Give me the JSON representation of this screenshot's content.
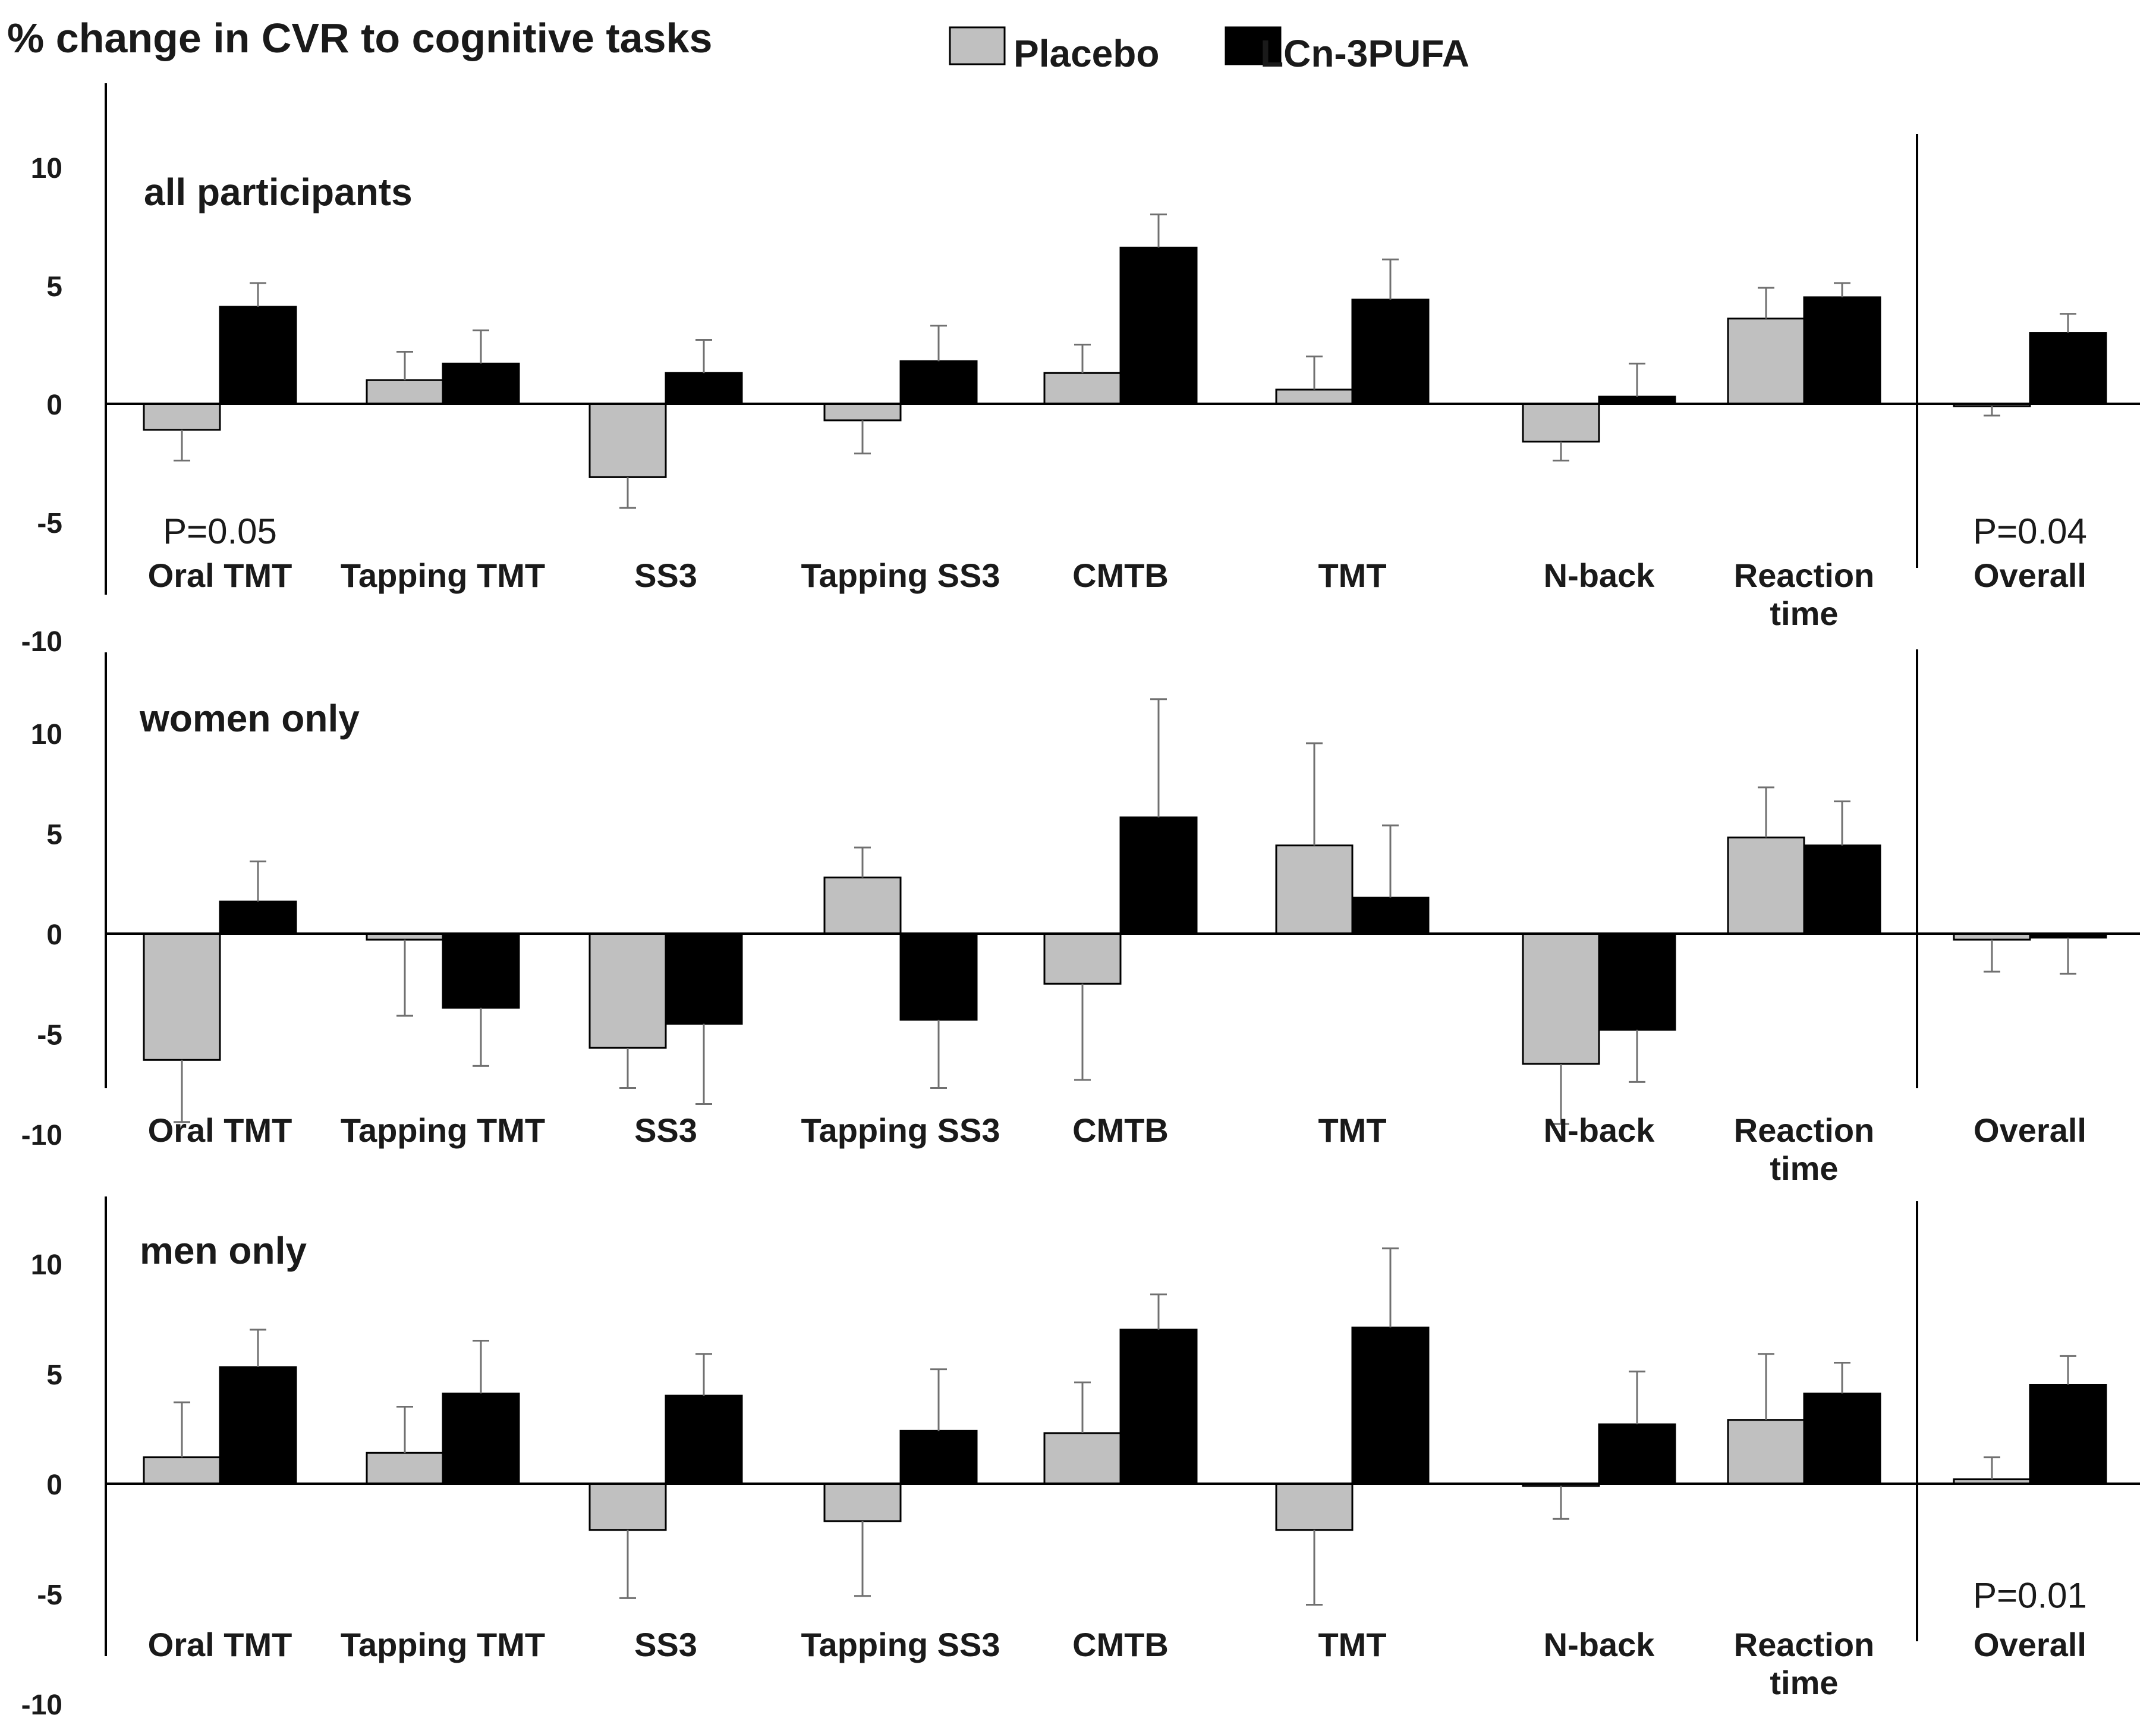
{
  "chart_data": {
    "type": "bar",
    "title": "% change in CVR to cognitive tasks",
    "legend": {
      "position": "top",
      "entries": [
        {
          "name": "Placebo",
          "color": "#c0c0c0"
        },
        {
          "name": "LCn-3PUFA",
          "color": "#000000"
        }
      ]
    },
    "categories": [
      "Oral TMT",
      "Tapping TMT",
      "SS3",
      "Tapping SS3",
      "CMTB",
      "TMT",
      "N-back",
      "Reaction time",
      "Overall"
    ],
    "category_lines": [
      [
        "Oral TMT"
      ],
      [
        "Tapping TMT"
      ],
      [
        "SS3"
      ],
      [
        "Tapping SS3"
      ],
      [
        "CMTB"
      ],
      [
        "TMT"
      ],
      [
        "N-back"
      ],
      [
        "Reaction",
        "time"
      ],
      [
        "Overall"
      ]
    ],
    "yticks": [
      "10",
      "5",
      "0",
      "-5",
      "-10"
    ],
    "panels": [
      {
        "title": "all participants",
        "ylim": [
          -10,
          13
        ],
        "series": [
          {
            "name": "Placebo",
            "values": [
              -1.1,
              1.0,
              -3.1,
              -0.7,
              1.3,
              0.6,
              -1.6,
              3.6,
              -0.1
            ],
            "errors": [
              1.3,
              1.2,
              1.3,
              1.4,
              1.2,
              1.4,
              0.8,
              1.3,
              0.4
            ]
          },
          {
            "name": "LCn-3PUFA",
            "values": [
              4.1,
              1.7,
              1.3,
              1.8,
              6.6,
              4.4,
              0.3,
              4.5,
              3.0
            ],
            "errors": [
              1.0,
              1.4,
              1.4,
              1.5,
              1.4,
              1.7,
              1.4,
              0.6,
              0.8
            ]
          }
        ],
        "annotations": [
          {
            "text": "P=0.05",
            "category": "Oral TMT",
            "y": -5.4
          },
          {
            "text": "P=0.04",
            "category": "Overall",
            "y": -5.4
          }
        ]
      },
      {
        "title": "women only",
        "ylim": [
          -10,
          12
        ],
        "series": [
          {
            "name": "Placebo",
            "values": [
              -6.3,
              -0.3,
              -5.7,
              2.8,
              -2.5,
              4.4,
              -6.5,
              4.8,
              -0.3
            ],
            "errors": [
              3.1,
              3.8,
              2.0,
              1.5,
              4.8,
              5.1,
              3.0,
              2.5,
              1.6
            ]
          },
          {
            "name": "LCn-3PUFA",
            "values": [
              1.6,
              -3.7,
              -4.5,
              -4.3,
              5.8,
              1.8,
              -4.8,
              4.4,
              -0.2
            ],
            "errors": [
              2.0,
              2.9,
              4.0,
              3.4,
              5.9,
              3.6,
              2.6,
              2.2,
              1.8
            ]
          }
        ],
        "annotations": []
      },
      {
        "title": "men only",
        "ylim": [
          -10,
          11
        ],
        "series": [
          {
            "name": "Placebo",
            "values": [
              1.2,
              1.4,
              -2.1,
              -1.7,
              2.3,
              -2.1,
              -0.1,
              2.9,
              0.2
            ],
            "errors": [
              2.5,
              2.1,
              3.1,
              3.4,
              2.3,
              3.4,
              1.5,
              3.0,
              1.0
            ]
          },
          {
            "name": "LCn-3PUFA",
            "values": [
              5.3,
              4.1,
              4.0,
              2.4,
              7.0,
              7.1,
              2.7,
              4.1,
              4.5
            ],
            "errors": [
              1.7,
              2.4,
              1.9,
              2.8,
              1.6,
              3.6,
              2.4,
              1.4,
              1.3
            ]
          }
        ],
        "annotations": [
          {
            "text": "P=0.01",
            "category": "Overall",
            "y": -5.1
          }
        ]
      }
    ]
  }
}
